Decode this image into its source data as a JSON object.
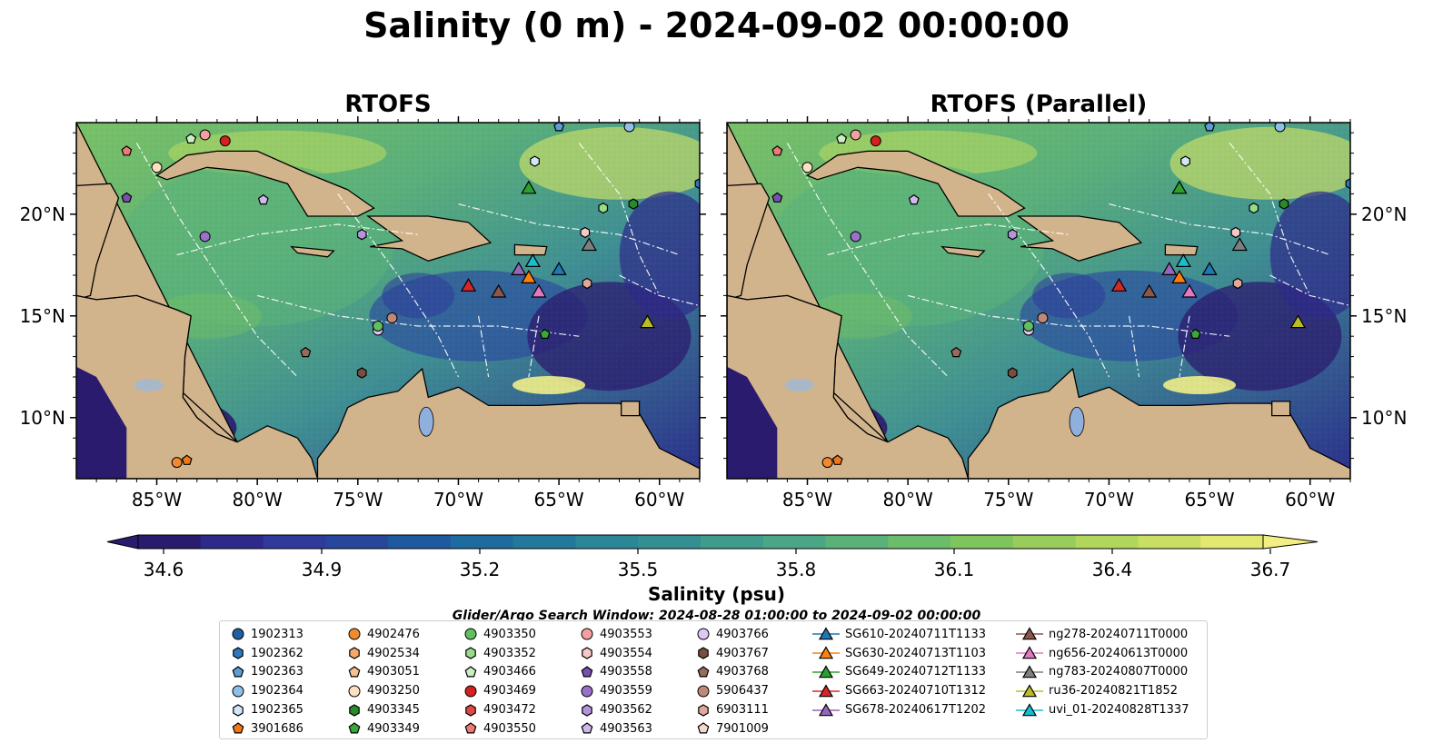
{
  "title": "Salinity (0 m) - 2024-09-02 00:00:00",
  "panels": [
    {
      "title": "RTOFS"
    },
    {
      "title": "RTOFS (Parallel)"
    }
  ],
  "axes": {
    "x_ticks": [
      "85°W",
      "80°W",
      "75°W",
      "70°W",
      "65°W",
      "60°W"
    ],
    "y_ticks": [
      "20°N",
      "15°N",
      "10°N"
    ]
  },
  "colorbar": {
    "label": "Salinity (psu)",
    "ticks": [
      "34.6",
      "34.9",
      "35.2",
      "35.5",
      "35.8",
      "36.1",
      "36.4",
      "36.7"
    ],
    "range": [
      34.6,
      36.7
    ],
    "colors": [
      "#2b1b6e",
      "#2e2a8a",
      "#2f3a9a",
      "#27479c",
      "#1f5aa0",
      "#1e6b9f",
      "#23799c",
      "#2b8797",
      "#348f93",
      "#3f9b8c",
      "#4aa684",
      "#5ab279",
      "#6cbd6a",
      "#7fc55e",
      "#98cd5c",
      "#b0d65c",
      "#c8df63",
      "#e3e870"
    ]
  },
  "search_window_note": "Glider/Argo Search Window: 2024-08-28 01:00:00 to 2024-09-02 00:00:00",
  "legend": [
    [
      {
        "label": "1902313",
        "marker": "circle",
        "color": "#1f5f9f"
      },
      {
        "label": "1902362",
        "marker": "hexagon",
        "color": "#2e78c0"
      },
      {
        "label": "1902363",
        "marker": "pentagon",
        "color": "#5a9fd8"
      },
      {
        "label": "1902364",
        "marker": "circle",
        "color": "#8fc0e8"
      },
      {
        "label": "1902365",
        "marker": "hexagon",
        "color": "#d4e7f8"
      },
      {
        "label": "3901686",
        "marker": "pentagon",
        "color": "#f07818"
      }
    ],
    [
      {
        "label": "4902476",
        "marker": "circle",
        "color": "#f08a30"
      },
      {
        "label": "4902534",
        "marker": "hexagon",
        "color": "#f5a868"
      },
      {
        "label": "4903051",
        "marker": "pentagon",
        "color": "#f8c08c"
      },
      {
        "label": "4903250",
        "marker": "circle",
        "color": "#fde0c0"
      },
      {
        "label": "4903345",
        "marker": "hexagon",
        "color": "#2a8a2a"
      },
      {
        "label": "4903349",
        "marker": "pentagon",
        "color": "#38a838"
      }
    ],
    [
      {
        "label": "4903350",
        "marker": "circle",
        "color": "#60c060"
      },
      {
        "label": "4903352",
        "marker": "hexagon",
        "color": "#98dc88"
      },
      {
        "label": "4903466",
        "marker": "pentagon",
        "color": "#c8f0c0"
      },
      {
        "label": "4903469",
        "marker": "circle",
        "color": "#d42020"
      },
      {
        "label": "4903472",
        "marker": "hexagon",
        "color": "#e04848"
      },
      {
        "label": "4903550",
        "marker": "pentagon",
        "color": "#f07878"
      }
    ],
    [
      {
        "label": "4903553",
        "marker": "circle",
        "color": "#f4a0a0"
      },
      {
        "label": "4903554",
        "marker": "hexagon",
        "color": "#f8c8c8"
      },
      {
        "label": "4903558",
        "marker": "pentagon",
        "color": "#7850b0"
      },
      {
        "label": "4903559",
        "marker": "circle",
        "color": "#9a70c8"
      },
      {
        "label": "4903562",
        "marker": "hexagon",
        "color": "#b494dc"
      },
      {
        "label": "4903563",
        "marker": "pentagon",
        "color": "#d0b8ec"
      }
    ],
    [
      {
        "label": "4903766",
        "marker": "circle",
        "color": "#e0c8f4"
      },
      {
        "label": "4903767",
        "marker": "hexagon",
        "color": "#7a4e3e"
      },
      {
        "label": "4903768",
        "marker": "pentagon",
        "color": "#9a6a5a"
      },
      {
        "label": "5906437",
        "marker": "circle",
        "color": "#c08878"
      },
      {
        "label": "6903111",
        "marker": "hexagon",
        "color": "#e0a898"
      },
      {
        "label": "7901009",
        "marker": "pentagon",
        "color": "#f8d8cc"
      }
    ],
    [
      {
        "label": "SG610-20240711T1133",
        "marker": "triangle",
        "color": "#1f77b4"
      },
      {
        "label": "SG630-20240713T1103",
        "marker": "triangle",
        "color": "#ff7f0e"
      },
      {
        "label": "SG649-20240712T1133",
        "marker": "triangle",
        "color": "#2ca02c"
      },
      {
        "label": "SG663-20240710T1312",
        "marker": "triangle",
        "color": "#d62728"
      },
      {
        "label": "SG678-20240617T1202",
        "marker": "triangle",
        "color": "#9467bd"
      }
    ],
    [
      {
        "label": "ng278-20240711T0000",
        "marker": "triangle",
        "color": "#8c564b"
      },
      {
        "label": "ng656-20240613T0000",
        "marker": "triangle",
        "color": "#e377c2"
      },
      {
        "label": "ng783-20240807T0000",
        "marker": "triangle",
        "color": "#7f7f7f"
      },
      {
        "label": "ru36-20240821T1852",
        "marker": "triangle",
        "color": "#bcbd22"
      },
      {
        "label": "uvi_01-20240828T1337",
        "marker": "triangle",
        "color": "#17becf"
      }
    ]
  ],
  "chart_data": {
    "type": "heatmap",
    "title": "Salinity (0 m) - 2024-09-02 00:00:00",
    "panels": [
      "RTOFS",
      "RTOFS (Parallel)"
    ],
    "variable": "Salinity (0 m)",
    "units": "psu",
    "color_range": [
      34.6,
      36.7
    ],
    "lon_range": [
      -89,
      -58
    ],
    "lat_range": [
      7,
      24.5
    ],
    "observations": [
      {
        "id": "SG610-20240711T1133",
        "type": "glider",
        "lon": -65.0,
        "lat": 17.3,
        "color": "#1f77b4",
        "marker": "triangle"
      },
      {
        "id": "SG630-20240713T1103",
        "type": "glider",
        "lon": -66.5,
        "lat": 16.9,
        "color": "#ff7f0e",
        "marker": "triangle"
      },
      {
        "id": "SG649-20240712T1133",
        "type": "glider",
        "lon": -66.5,
        "lat": 21.3,
        "color": "#2ca02c",
        "marker": "triangle"
      },
      {
        "id": "SG663-20240710T1312",
        "type": "glider",
        "lon": -69.5,
        "lat": 16.5,
        "color": "#d62728",
        "marker": "triangle"
      },
      {
        "id": "SG678-20240617T1202",
        "type": "glider",
        "lon": -67.0,
        "lat": 17.3,
        "color": "#9467bd",
        "marker": "triangle"
      },
      {
        "id": "ng278-20240711T0000",
        "type": "glider",
        "lon": -68.0,
        "lat": 16.2,
        "color": "#8c564b",
        "marker": "triangle"
      },
      {
        "id": "ng656-20240613T0000",
        "type": "glider",
        "lon": -66.0,
        "lat": 16.2,
        "color": "#e377c2",
        "marker": "triangle"
      },
      {
        "id": "ng783-20240807T0000",
        "type": "glider",
        "lon": -63.5,
        "lat": 18.5,
        "color": "#7f7f7f",
        "marker": "triangle"
      },
      {
        "id": "ru36-20240821T1852",
        "type": "glider",
        "lon": -60.6,
        "lat": 14.7,
        "color": "#bcbd22",
        "marker": "triangle"
      },
      {
        "id": "uvi_01-20240828T1337",
        "type": "glider",
        "lon": -66.3,
        "lat": 17.7,
        "color": "#17becf",
        "marker": "triangle"
      },
      {
        "id": "1902364",
        "type": "argo",
        "lon": -61.5,
        "lat": 24.3,
        "color": "#8fc0e8",
        "marker": "circle"
      },
      {
        "id": "1902363",
        "type": "argo",
        "lon": -65.0,
        "lat": 24.3,
        "color": "#5a9fd8",
        "marker": "pentagon"
      },
      {
        "id": "1902362",
        "type": "argo",
        "lon": -58.0,
        "lat": 21.5,
        "color": "#2e78c0",
        "marker": "hexagon"
      },
      {
        "id": "1902365",
        "type": "argo",
        "lon": -66.2,
        "lat": 22.6,
        "color": "#d4e7f8",
        "marker": "hexagon"
      },
      {
        "id": "4903345",
        "type": "argo",
        "lon": -61.3,
        "lat": 20.5,
        "color": "#2a8a2a",
        "marker": "hexagon"
      },
      {
        "id": "4903352",
        "type": "argo",
        "lon": -62.8,
        "lat": 20.3,
        "color": "#98dc88",
        "marker": "hexagon"
      },
      {
        "id": "4903349",
        "type": "argo",
        "lon": -65.7,
        "lat": 14.1,
        "color": "#38a838",
        "marker": "pentagon"
      },
      {
        "id": "4903469",
        "type": "argo",
        "lon": -81.6,
        "lat": 23.6,
        "color": "#d42020",
        "marker": "circle"
      },
      {
        "id": "4903553",
        "type": "argo",
        "lon": -82.6,
        "lat": 23.9,
        "color": "#f4a0a0",
        "marker": "circle"
      },
      {
        "id": "4903466",
        "type": "argo",
        "lon": -83.3,
        "lat": 23.7,
        "color": "#c8f0c0",
        "marker": "pentagon"
      },
      {
        "id": "4903550",
        "type": "argo",
        "lon": -86.5,
        "lat": 23.1,
        "color": "#f07878",
        "marker": "pentagon"
      },
      {
        "id": "4903250",
        "type": "argo",
        "lon": -85.0,
        "lat": 22.3,
        "color": "#fde0c0",
        "marker": "circle"
      },
      {
        "id": "4903558",
        "type": "argo",
        "lon": -86.5,
        "lat": 20.8,
        "color": "#7850b0",
        "marker": "pentagon"
      },
      {
        "id": "4903563",
        "type": "argo",
        "lon": -79.7,
        "lat": 20.7,
        "color": "#d0b8ec",
        "marker": "pentagon"
      },
      {
        "id": "4903559",
        "type": "argo",
        "lon": -82.6,
        "lat": 18.9,
        "color": "#9a70c8",
        "marker": "circle"
      },
      {
        "id": "4903562",
        "type": "argo",
        "lon": -74.8,
        "lat": 19.0,
        "color": "#b494dc",
        "marker": "hexagon"
      },
      {
        "id": "4903554",
        "type": "argo",
        "lon": -63.7,
        "lat": 19.1,
        "color": "#f8c8c8",
        "marker": "hexagon"
      },
      {
        "id": "4903766",
        "type": "argo",
        "lon": -74.0,
        "lat": 14.3,
        "color": "#e0c8f4",
        "marker": "circle"
      },
      {
        "id": "4903350",
        "type": "argo",
        "lon": -74.0,
        "lat": 14.5,
        "color": "#60c060",
        "marker": "circle"
      },
      {
        "id": "5906437",
        "type": "argo",
        "lon": -73.3,
        "lat": 14.9,
        "color": "#c08878",
        "marker": "circle"
      },
      {
        "id": "6903111",
        "type": "argo",
        "lon": -63.6,
        "lat": 16.6,
        "color": "#e0a898",
        "marker": "hexagon"
      },
      {
        "id": "4903768",
        "type": "argo",
        "lon": -77.6,
        "lat": 13.2,
        "color": "#9a6a5a",
        "marker": "pentagon"
      },
      {
        "id": "4903767",
        "type": "argo",
        "lon": -74.8,
        "lat": 12.2,
        "color": "#7a4e3e",
        "marker": "hexagon"
      },
      {
        "id": "3901686",
        "type": "argo",
        "lon": -83.5,
        "lat": 7.9,
        "color": "#f07818",
        "marker": "pentagon"
      },
      {
        "id": "4902476",
        "type": "argo",
        "lon": -84.0,
        "lat": 7.8,
        "color": "#f08a30",
        "marker": "circle"
      }
    ]
  }
}
